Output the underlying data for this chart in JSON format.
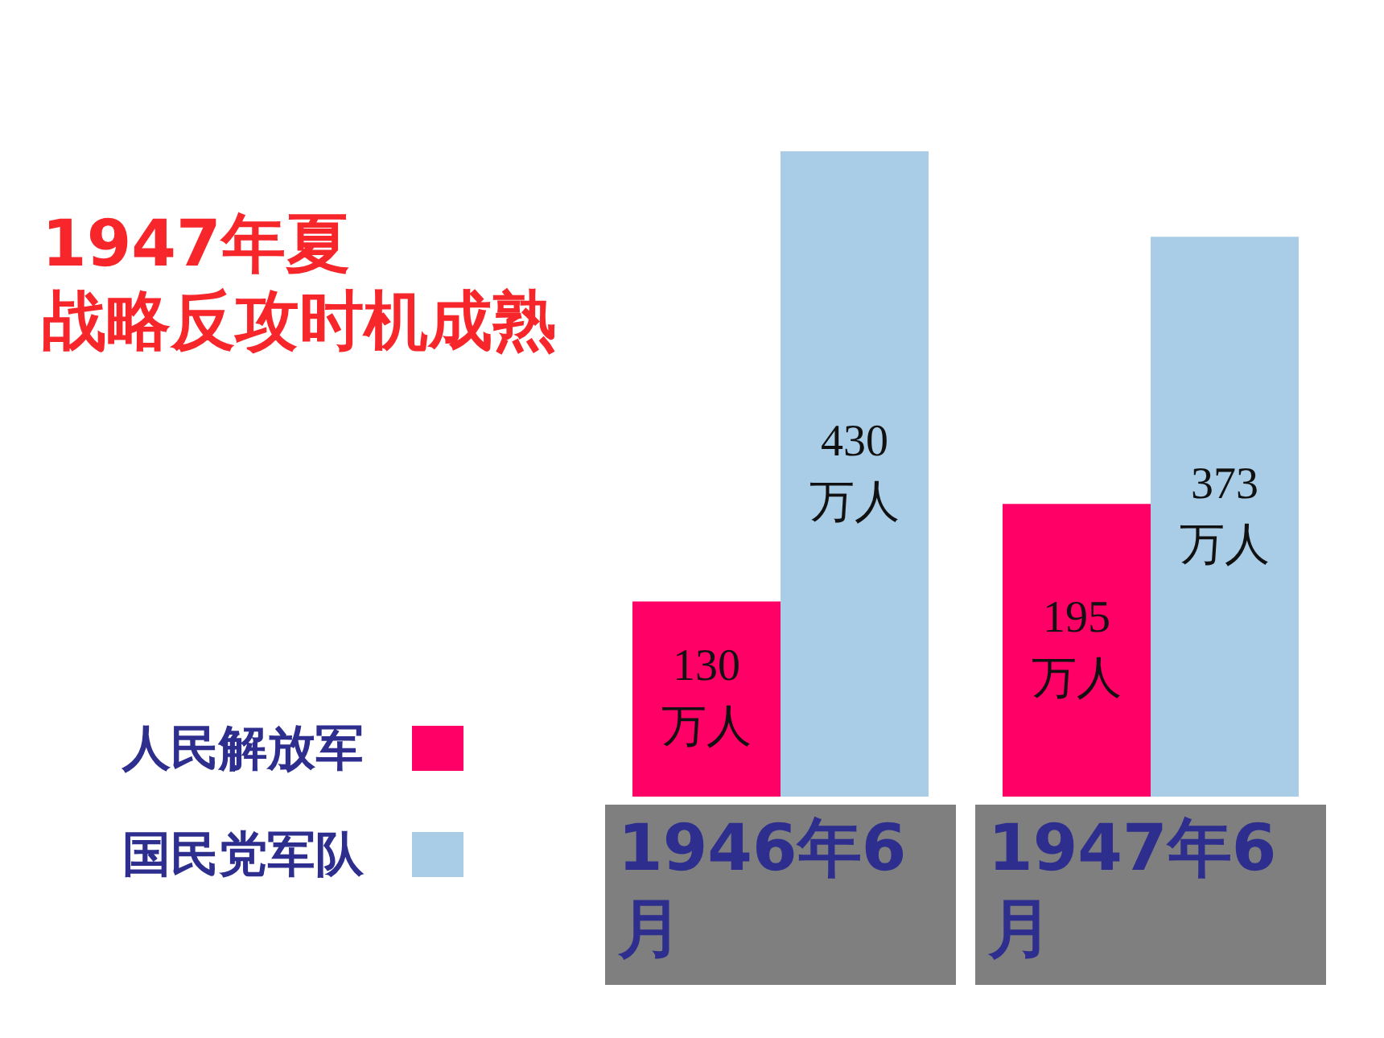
{
  "chart_data": {
    "type": "bar",
    "title": "1947年夏",
    "subtitle": "战略反攻时机成熟",
    "categories": [
      "1946年6月",
      "1947年6月"
    ],
    "series": [
      {
        "name": "人民解放军",
        "color": "#ff0066",
        "values": [
          130,
          195
        ],
        "value_labels": [
          "130 万人",
          "195 万人"
        ]
      },
      {
        "name": "国民党军队",
        "color": "#a9cde6",
        "values": [
          430,
          373
        ],
        "value_labels": [
          "430 万人",
          "373 万人"
        ]
      }
    ],
    "legend": "left",
    "grid": false,
    "tick_labels": "x"
  }
}
